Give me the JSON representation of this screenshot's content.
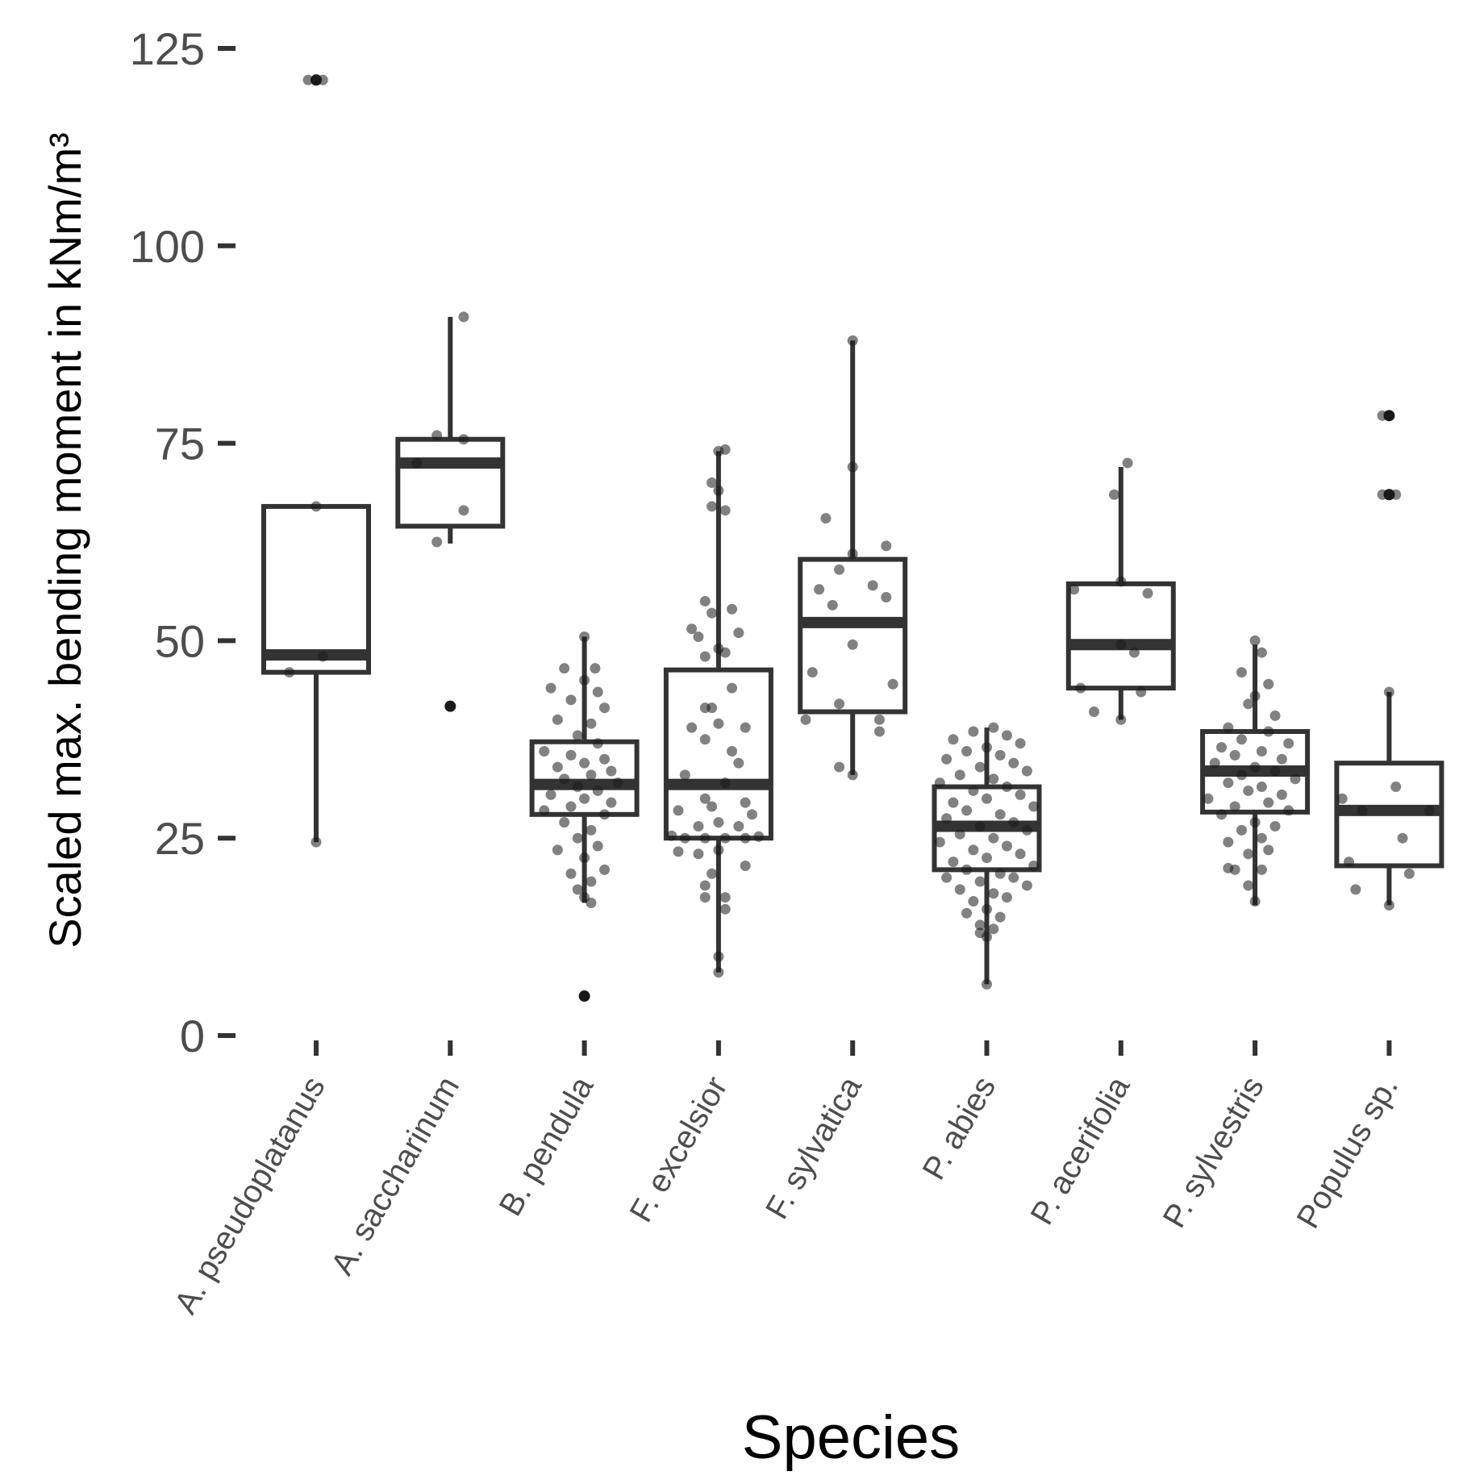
{
  "chart_data": {
    "type": "boxplot",
    "xlabel": "Species",
    "ylabel": "Scaled max. bending moment in kNm/m³",
    "ylim": [
      0,
      125
    ],
    "yticks": [
      0,
      25,
      50,
      75,
      100,
      125
    ],
    "grid": false,
    "legend": "none",
    "colors": {
      "box": "#333333",
      "point": "#1a1a1a",
      "tick_label": "#4d4d4d"
    },
    "categories": [
      "A. pseudoplatanus",
      "A. saccharinum",
      "B. pendula",
      "F. excelsior",
      "F. sylvatica",
      "P. abies",
      "P. acerifolia",
      "P. sylvestris",
      "Populus sp."
    ],
    "boxes": [
      {
        "q1": 46,
        "median": 48.2,
        "q3": 67,
        "whisker_low": 24.5,
        "whisker_high": 67,
        "outliers": [
          121
        ]
      },
      {
        "q1": 64.5,
        "median": 72.5,
        "q3": 75.5,
        "whisker_low": 62.3,
        "whisker_high": 91,
        "outliers": [
          41.7
        ]
      },
      {
        "q1": 28,
        "median": 31.8,
        "q3": 37.2,
        "whisker_low": 16.8,
        "whisker_high": 50.5,
        "outliers": [
          5
        ]
      },
      {
        "q1": 25,
        "median": 31.8,
        "q3": 46.3,
        "whisker_low": 8,
        "whisker_high": 74,
        "outliers": []
      },
      {
        "q1": 41,
        "median": 52.3,
        "q3": 60.3,
        "whisker_low": 33,
        "whisker_high": 88,
        "outliers": []
      },
      {
        "q1": 21,
        "median": 26.5,
        "q3": 31.5,
        "whisker_low": 6.5,
        "whisker_high": 39,
        "outliers": []
      },
      {
        "q1": 44,
        "median": 49.5,
        "q3": 57.2,
        "whisker_low": 40,
        "whisker_high": 72,
        "outliers": []
      },
      {
        "q1": 28.3,
        "median": 33.5,
        "q3": 38.5,
        "whisker_low": 16.5,
        "whisker_high": 49.5,
        "outliers": []
      },
      {
        "q1": 21.5,
        "median": 28.5,
        "q3": 34.5,
        "whisker_low": 16.5,
        "whisker_high": 43.5,
        "outliers": [
          68.5,
          78.5
        ]
      }
    ],
    "points": [
      [
        {
          "x": 0.05,
          "y": 121
        },
        {
          "x": -0.06,
          "y": 121
        },
        {
          "x": 0.0,
          "y": 67
        },
        {
          "x": 0.05,
          "y": 48
        },
        {
          "x": -0.2,
          "y": 46
        },
        {
          "x": 0.0,
          "y": 24.5
        }
      ],
      [
        {
          "x": 0.1,
          "y": 91
        },
        {
          "x": -0.1,
          "y": 76
        },
        {
          "x": 0.1,
          "y": 75.5
        },
        {
          "x": -0.25,
          "y": 72.5
        },
        {
          "x": 0.1,
          "y": 66.5
        },
        {
          "x": -0.1,
          "y": 62.5
        }
      ],
      [
        {
          "x": 0.0,
          "y": 50.5
        },
        {
          "x": 0.08,
          "y": 46.5
        },
        {
          "x": -0.15,
          "y": 46.5
        },
        {
          "x": 0.0,
          "y": 45
        },
        {
          "x": -0.25,
          "y": 44
        },
        {
          "x": 0.1,
          "y": 43.5
        },
        {
          "x": -0.1,
          "y": 42.5
        },
        {
          "x": 0.15,
          "y": 41.5
        },
        {
          "x": -0.2,
          "y": 40
        },
        {
          "x": 0.05,
          "y": 39.5
        },
        {
          "x": -0.05,
          "y": 38
        },
        {
          "x": 0.1,
          "y": 37
        },
        {
          "x": -0.3,
          "y": 36
        },
        {
          "x": -0.1,
          "y": 35.5
        },
        {
          "x": 0.15,
          "y": 35
        },
        {
          "x": 0.0,
          "y": 34.5
        },
        {
          "x": -0.2,
          "y": 34
        },
        {
          "x": 0.2,
          "y": 33.5
        },
        {
          "x": 0.05,
          "y": 33
        },
        {
          "x": -0.15,
          "y": 32.5
        },
        {
          "x": 0.25,
          "y": 32
        },
        {
          "x": -0.05,
          "y": 31.5
        },
        {
          "x": 0.1,
          "y": 31
        },
        {
          "x": -0.25,
          "y": 30.5
        },
        {
          "x": 0.0,
          "y": 30
        },
        {
          "x": 0.2,
          "y": 29.5
        },
        {
          "x": -0.1,
          "y": 29
        },
        {
          "x": -0.3,
          "y": 28.5
        },
        {
          "x": 0.15,
          "y": 28
        },
        {
          "x": -0.15,
          "y": 27
        },
        {
          "x": 0.05,
          "y": 26
        },
        {
          "x": -0.05,
          "y": 25
        },
        {
          "x": 0.1,
          "y": 24
        },
        {
          "x": -0.2,
          "y": 23.5
        },
        {
          "x": 0.0,
          "y": 22.5
        },
        {
          "x": 0.15,
          "y": 21
        },
        {
          "x": -0.1,
          "y": 20.5
        },
        {
          "x": 0.05,
          "y": 19.5
        },
        {
          "x": -0.05,
          "y": 18.5
        },
        {
          "x": 0.0,
          "y": 17.5
        },
        {
          "x": 0.05,
          "y": 16.8
        }
      ],
      [
        {
          "x": 0.0,
          "y": 74
        },
        {
          "x": 0.05,
          "y": 74.2
        },
        {
          "x": -0.05,
          "y": 70
        },
        {
          "x": 0.0,
          "y": 69
        },
        {
          "x": -0.05,
          "y": 67
        },
        {
          "x": 0.05,
          "y": 66.5
        },
        {
          "x": -0.1,
          "y": 55
        },
        {
          "x": 0.1,
          "y": 54
        },
        {
          "x": -0.05,
          "y": 53.5
        },
        {
          "x": -0.2,
          "y": 51.5
        },
        {
          "x": 0.15,
          "y": 51
        },
        {
          "x": -0.15,
          "y": 50.5
        },
        {
          "x": 0.0,
          "y": 49
        },
        {
          "x": -0.1,
          "y": 48
        },
        {
          "x": 0.05,
          "y": 48.5
        },
        {
          "x": 0.1,
          "y": 44
        },
        {
          "x": -0.05,
          "y": 41.5
        },
        {
          "x": -0.1,
          "y": 41.5
        },
        {
          "x": 0.0,
          "y": 39.5
        },
        {
          "x": -0.2,
          "y": 39
        },
        {
          "x": 0.2,
          "y": 39
        },
        {
          "x": -0.1,
          "y": 37.5
        },
        {
          "x": 0.1,
          "y": 36
        },
        {
          "x": 0.15,
          "y": 34.5
        },
        {
          "x": -0.25,
          "y": 33
        },
        {
          "x": 0.05,
          "y": 32
        },
        {
          "x": -0.1,
          "y": 30
        },
        {
          "x": 0.2,
          "y": 29.5
        },
        {
          "x": -0.05,
          "y": 29
        },
        {
          "x": -0.3,
          "y": 28.5
        },
        {
          "x": 0.25,
          "y": 28
        },
        {
          "x": 0.0,
          "y": 27
        },
        {
          "x": -0.15,
          "y": 26.5
        },
        {
          "x": 0.15,
          "y": 26.5
        },
        {
          "x": -0.35,
          "y": 25.3
        },
        {
          "x": -0.25,
          "y": 25
        },
        {
          "x": -0.1,
          "y": 25
        },
        {
          "x": 0.05,
          "y": 25
        },
        {
          "x": 0.2,
          "y": 25
        },
        {
          "x": 0.3,
          "y": 25.2
        },
        {
          "x": -0.3,
          "y": 23.3
        },
        {
          "x": -0.15,
          "y": 23
        },
        {
          "x": 0.0,
          "y": 23.5
        },
        {
          "x": 0.2,
          "y": 21.5
        },
        {
          "x": -0.05,
          "y": 20.5
        },
        {
          "x": -0.1,
          "y": 19
        },
        {
          "x": -0.1,
          "y": 17.5
        },
        {
          "x": 0.05,
          "y": 17.5
        },
        {
          "x": 0.05,
          "y": 16
        },
        {
          "x": 0.0,
          "y": 10
        },
        {
          "x": 0.0,
          "y": 8
        }
      ],
      [
        {
          "x": 0.0,
          "y": 88
        },
        {
          "x": 0.0,
          "y": 72
        },
        {
          "x": -0.2,
          "y": 65.5
        },
        {
          "x": 0.25,
          "y": 62
        },
        {
          "x": 0.0,
          "y": 61
        },
        {
          "x": -0.1,
          "y": 59
        },
        {
          "x": 0.15,
          "y": 57
        },
        {
          "x": -0.25,
          "y": 56.5
        },
        {
          "x": 0.25,
          "y": 55.5
        },
        {
          "x": -0.15,
          "y": 54.5
        },
        {
          "x": 0.0,
          "y": 49.5
        },
        {
          "x": -0.3,
          "y": 46
        },
        {
          "x": 0.3,
          "y": 44.5
        },
        {
          "x": -0.1,
          "y": 42
        },
        {
          "x": -0.35,
          "y": 40
        },
        {
          "x": 0.2,
          "y": 40
        },
        {
          "x": 0.2,
          "y": 38.5
        },
        {
          "x": -0.1,
          "y": 34
        },
        {
          "x": 0.0,
          "y": 33
        }
      ],
      [
        {
          "x": 0.05,
          "y": 39
        },
        {
          "x": -0.1,
          "y": 38.5
        },
        {
          "x": 0.15,
          "y": 38
        },
        {
          "x": -0.25,
          "y": 37.5
        },
        {
          "x": 0.25,
          "y": 37
        },
        {
          "x": 0.0,
          "y": 36.5
        },
        {
          "x": -0.15,
          "y": 36
        },
        {
          "x": 0.1,
          "y": 35.5
        },
        {
          "x": -0.3,
          "y": 35
        },
        {
          "x": 0.2,
          "y": 34.5
        },
        {
          "x": -0.05,
          "y": 34
        },
        {
          "x": 0.3,
          "y": 33.5
        },
        {
          "x": -0.2,
          "y": 33
        },
        {
          "x": 0.05,
          "y": 32.5
        },
        {
          "x": -0.35,
          "y": 32
        },
        {
          "x": 0.15,
          "y": 31.5
        },
        {
          "x": -0.1,
          "y": 31
        },
        {
          "x": 0.25,
          "y": 30.5
        },
        {
          "x": 0.0,
          "y": 30
        },
        {
          "x": -0.25,
          "y": 29.5
        },
        {
          "x": 0.35,
          "y": 29
        },
        {
          "x": -0.15,
          "y": 28.5
        },
        {
          "x": 0.1,
          "y": 28
        },
        {
          "x": -0.3,
          "y": 27.5
        },
        {
          "x": 0.2,
          "y": 27
        },
        {
          "x": -0.05,
          "y": 26.5
        },
        {
          "x": 0.3,
          "y": 26
        },
        {
          "x": -0.2,
          "y": 25.5
        },
        {
          "x": 0.05,
          "y": 25
        },
        {
          "x": -0.35,
          "y": 24.5
        },
        {
          "x": 0.15,
          "y": 24
        },
        {
          "x": -0.1,
          "y": 23.5
        },
        {
          "x": 0.25,
          "y": 23
        },
        {
          "x": 0.0,
          "y": 22.5
        },
        {
          "x": -0.25,
          "y": 22
        },
        {
          "x": 0.35,
          "y": 21.5
        },
        {
          "x": -0.15,
          "y": 21
        },
        {
          "x": 0.1,
          "y": 20.5
        },
        {
          "x": -0.3,
          "y": 20
        },
        {
          "x": 0.2,
          "y": 20
        },
        {
          "x": -0.05,
          "y": 19.5
        },
        {
          "x": 0.3,
          "y": 19
        },
        {
          "x": -0.2,
          "y": 18.5
        },
        {
          "x": 0.05,
          "y": 18
        },
        {
          "x": 0.15,
          "y": 17.5
        },
        {
          "x": -0.1,
          "y": 17
        },
        {
          "x": 0.0,
          "y": 16
        },
        {
          "x": -0.15,
          "y": 15.5
        },
        {
          "x": 0.1,
          "y": 15
        },
        {
          "x": -0.05,
          "y": 14
        },
        {
          "x": 0.05,
          "y": 13.5
        },
        {
          "x": -0.05,
          "y": 13
        },
        {
          "x": 0.0,
          "y": 12.5
        },
        {
          "x": 0.0,
          "y": 6.5
        }
      ],
      [
        {
          "x": 0.05,
          "y": 72.5
        },
        {
          "x": -0.05,
          "y": 68.5
        },
        {
          "x": 0.0,
          "y": 57.5
        },
        {
          "x": -0.35,
          "y": 56.5
        },
        {
          "x": 0.2,
          "y": 56
        },
        {
          "x": 0.0,
          "y": 49.5
        },
        {
          "x": 0.1,
          "y": 48.5
        },
        {
          "x": -0.3,
          "y": 44
        },
        {
          "x": 0.15,
          "y": 43.5
        },
        {
          "x": -0.2,
          "y": 41
        },
        {
          "x": 0.0,
          "y": 40
        }
      ],
      [
        {
          "x": 0.0,
          "y": 50
        },
        {
          "x": 0.05,
          "y": 48.5
        },
        {
          "x": -0.1,
          "y": 46
        },
        {
          "x": 0.1,
          "y": 44.5
        },
        {
          "x": 0.0,
          "y": 43
        },
        {
          "x": -0.05,
          "y": 42
        },
        {
          "x": 0.15,
          "y": 40.5
        },
        {
          "x": -0.2,
          "y": 39
        },
        {
          "x": 0.1,
          "y": 38.5
        },
        {
          "x": -0.1,
          "y": 37.5
        },
        {
          "x": 0.25,
          "y": 37
        },
        {
          "x": -0.25,
          "y": 36.5
        },
        {
          "x": 0.05,
          "y": 36
        },
        {
          "x": -0.15,
          "y": 35.5
        },
        {
          "x": 0.2,
          "y": 35
        },
        {
          "x": -0.3,
          "y": 34.5
        },
        {
          "x": 0.0,
          "y": 34
        },
        {
          "x": 0.15,
          "y": 33.5
        },
        {
          "x": -0.1,
          "y": 33
        },
        {
          "x": 0.3,
          "y": 32.5
        },
        {
          "x": -0.2,
          "y": 32
        },
        {
          "x": 0.05,
          "y": 31.5
        },
        {
          "x": -0.05,
          "y": 31
        },
        {
          "x": 0.2,
          "y": 30.5
        },
        {
          "x": -0.35,
          "y": 30
        },
        {
          "x": 0.1,
          "y": 29.5
        },
        {
          "x": -0.15,
          "y": 29
        },
        {
          "x": 0.25,
          "y": 28.5
        },
        {
          "x": -0.25,
          "y": 28
        },
        {
          "x": 0.0,
          "y": 27
        },
        {
          "x": 0.15,
          "y": 26.5
        },
        {
          "x": -0.1,
          "y": 26
        },
        {
          "x": 0.05,
          "y": 25
        },
        {
          "x": -0.2,
          "y": 24.5
        },
        {
          "x": 0.1,
          "y": 23.5
        },
        {
          "x": -0.05,
          "y": 23
        },
        {
          "x": -0.2,
          "y": 21.2
        },
        {
          "x": -0.15,
          "y": 21
        },
        {
          "x": 0.05,
          "y": 21
        },
        {
          "x": -0.05,
          "y": 19
        },
        {
          "x": 0.0,
          "y": 17
        }
      ],
      [
        {
          "x": -0.05,
          "y": 78.5
        },
        {
          "x": 0.0,
          "y": 78.5
        },
        {
          "x": -0.05,
          "y": 68.5
        },
        {
          "x": 0.05,
          "y": 68.5
        },
        {
          "x": 0.0,
          "y": 43.5
        },
        {
          "x": 0.05,
          "y": 31.5
        },
        {
          "x": -0.35,
          "y": 30
        },
        {
          "x": 0.3,
          "y": 28.5
        },
        {
          "x": -0.2,
          "y": 28.5
        },
        {
          "x": 0.1,
          "y": 25
        },
        {
          "x": -0.3,
          "y": 22
        },
        {
          "x": 0.15,
          "y": 20.5
        },
        {
          "x": -0.25,
          "y": 18.5
        },
        {
          "x": 0.0,
          "y": 16.5
        }
      ]
    ]
  }
}
